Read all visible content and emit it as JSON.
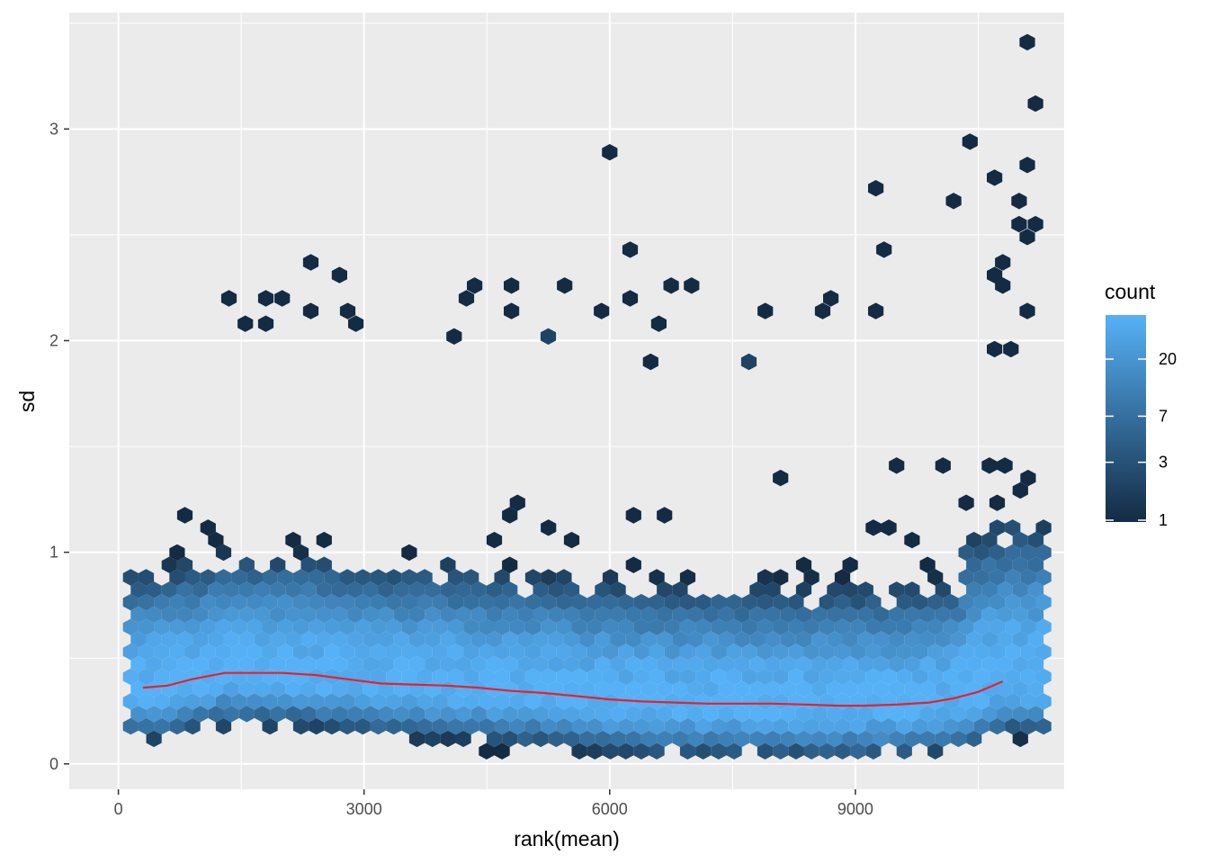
{
  "chart_data": {
    "type": "hexbin",
    "xlabel": "rank(mean)",
    "ylabel": "sd",
    "xlim": [
      -600,
      11550
    ],
    "ylim": [
      -0.12,
      3.55
    ],
    "x_ticks": [
      0,
      3000,
      6000,
      9000
    ],
    "x_tick_labels": [
      "0",
      "3000",
      "6000",
      "9000"
    ],
    "y_ticks": [
      0,
      1,
      2,
      3
    ],
    "y_tick_labels": [
      "0",
      "1",
      "2",
      "3"
    ],
    "grid": true,
    "legend": {
      "title": "count",
      "position": "right",
      "breaks": [
        1,
        3,
        7,
        20
      ],
      "labels": [
        "1",
        "3",
        "7",
        "20"
      ],
      "max": 45,
      "scale": "log",
      "low_color": "#132B43",
      "high_color": "#56B1F7"
    },
    "hex_bins": {
      "x_range": [
        150,
        11350
      ],
      "y_range": [
        0.06,
        3.41
      ],
      "peak_count": 45
    },
    "smooth_line": {
      "color": "#e8202a",
      "x": [
        300,
        600,
        900,
        1300,
        1700,
        2000,
        2400,
        2800,
        3200,
        3600,
        4000,
        4400,
        4800,
        5200,
        5600,
        6000,
        6400,
        6800,
        7200,
        7600,
        8000,
        8400,
        8800,
        9100,
        9500,
        9900,
        10200,
        10500,
        10800
      ],
      "y": [
        0.36,
        0.37,
        0.4,
        0.43,
        0.43,
        0.43,
        0.42,
        0.4,
        0.38,
        0.375,
        0.37,
        0.36,
        0.345,
        0.335,
        0.32,
        0.305,
        0.295,
        0.29,
        0.285,
        0.285,
        0.285,
        0.28,
        0.275,
        0.275,
        0.28,
        0.29,
        0.31,
        0.34,
        0.39
      ]
    },
    "outliers": [
      {
        "x": 11100,
        "y": 3.41
      },
      {
        "x": 11200,
        "y": 3.12
      },
      {
        "x": 11100,
        "y": 2.83
      },
      {
        "x": 10400,
        "y": 2.94
      },
      {
        "x": 6000,
        "y": 2.89
      },
      {
        "x": 10200,
        "y": 2.66
      },
      {
        "x": 9250,
        "y": 2.72
      },
      {
        "x": 10700,
        "y": 2.77
      },
      {
        "x": 11000,
        "y": 2.66
      },
      {
        "x": 11100,
        "y": 2.49
      },
      {
        "x": 11200,
        "y": 2.55
      },
      {
        "x": 11000,
        "y": 2.55
      },
      {
        "x": 6250,
        "y": 2.43
      },
      {
        "x": 9350,
        "y": 2.43
      },
      {
        "x": 10800,
        "y": 2.37
      },
      {
        "x": 2350,
        "y": 2.37
      },
      {
        "x": 2700,
        "y": 2.31
      },
      {
        "x": 10700,
        "y": 2.31
      },
      {
        "x": 10800,
        "y": 2.26
      },
      {
        "x": 4350,
        "y": 2.26
      },
      {
        "x": 4800,
        "y": 2.26
      },
      {
        "x": 5450,
        "y": 2.26
      },
      {
        "x": 6750,
        "y": 2.26
      },
      {
        "x": 7000,
        "y": 2.26
      },
      {
        "x": 1350,
        "y": 2.2
      },
      {
        "x": 1800,
        "y": 2.2
      },
      {
        "x": 2000,
        "y": 2.2
      },
      {
        "x": 4250,
        "y": 2.2
      },
      {
        "x": 6250,
        "y": 2.2
      },
      {
        "x": 8700,
        "y": 2.2
      },
      {
        "x": 1550,
        "y": 2.08
      },
      {
        "x": 1800,
        "y": 2.08
      },
      {
        "x": 2350,
        "y": 2.14
      },
      {
        "x": 2800,
        "y": 2.14
      },
      {
        "x": 2900,
        "y": 2.08
      },
      {
        "x": 4800,
        "y": 2.14
      },
      {
        "x": 5900,
        "y": 2.14
      },
      {
        "x": 6600,
        "y": 2.08
      },
      {
        "x": 7900,
        "y": 2.14
      },
      {
        "x": 8600,
        "y": 2.14
      },
      {
        "x": 9250,
        "y": 2.14
      },
      {
        "x": 11100,
        "y": 2.14
      },
      {
        "x": 4100,
        "y": 2.02
      },
      {
        "x": 5250,
        "y": 2.02
      },
      {
        "x": 6500,
        "y": 1.9
      },
      {
        "x": 7700,
        "y": 1.9
      },
      {
        "x": 10700,
        "y": 1.96
      },
      {
        "x": 10900,
        "y": 1.96
      }
    ]
  }
}
